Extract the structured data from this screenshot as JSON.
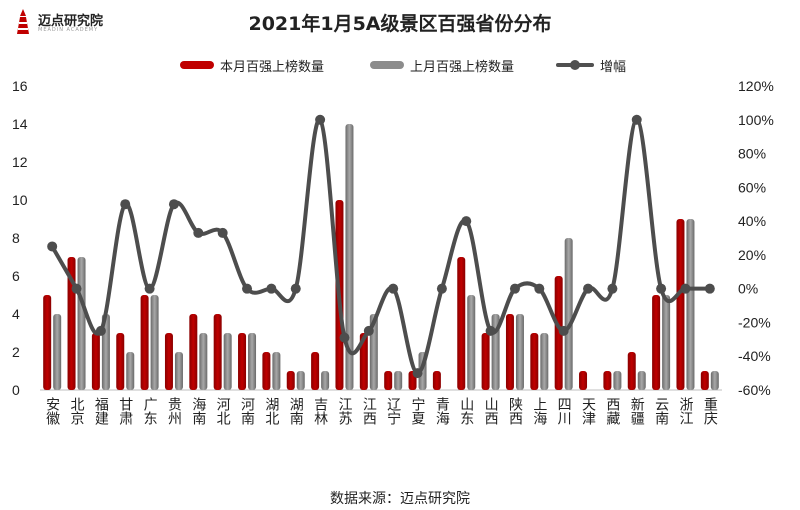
{
  "logo": {
    "text": "迈点研究院",
    "sub": "MEADIN ACADEMY"
  },
  "source": "数据来源：迈点研究院",
  "colors": {
    "current": "#c00000",
    "previous": "#8c8c8c",
    "growth": "#4d4d4d"
  },
  "chart_data": {
    "type": "bar",
    "title": "2021年1月5A级景区百强省份分布",
    "categories": [
      "安徽",
      "北京",
      "福建",
      "甘肃",
      "广东",
      "贵州",
      "海南",
      "河北",
      "河南",
      "湖北",
      "湖南",
      "吉林",
      "江苏",
      "江西",
      "辽宁",
      "宁夏",
      "青海",
      "山东",
      "山西",
      "陕西",
      "上海",
      "四川",
      "天津",
      "西藏",
      "新疆",
      "云南",
      "浙江",
      "重庆"
    ],
    "series": [
      {
        "name": "本月百强上榜数量",
        "type": "bar",
        "axis": "left",
        "values": [
          5,
          7,
          3,
          3,
          5,
          3,
          4,
          4,
          3,
          2,
          1,
          2,
          10,
          3,
          1,
          1,
          1,
          7,
          3,
          4,
          3,
          6,
          1,
          1,
          2,
          5,
          9,
          1
        ]
      },
      {
        "name": "上月百强上榜数量",
        "type": "bar",
        "axis": "left",
        "values": [
          4,
          7,
          4,
          2,
          5,
          2,
          3,
          3,
          3,
          2,
          1,
          1,
          14,
          4,
          1,
          2,
          0,
          5,
          4,
          4,
          3,
          8,
          0,
          1,
          1,
          5,
          9,
          1
        ]
      },
      {
        "name": "增幅",
        "type": "line",
        "axis": "right",
        "unit": "%",
        "values": [
          25,
          0,
          -25,
          50,
          0,
          50,
          33,
          33,
          0,
          0,
          0,
          100,
          -29,
          -25,
          0,
          -50,
          0,
          40,
          -25,
          0,
          0,
          -25,
          0,
          0,
          100,
          0,
          0,
          0
        ]
      }
    ],
    "y_left": {
      "min": 0,
      "max": 16,
      "ticks": [
        "0",
        "2",
        "4",
        "6",
        "8",
        "10",
        "12",
        "14",
        "16"
      ]
    },
    "y_right": {
      "min": -60,
      "max": 120,
      "ticks": [
        "-60%",
        "-40%",
        "-20%",
        "0%",
        "20%",
        "40%",
        "60%",
        "80%",
        "100%",
        "120%"
      ]
    },
    "grid": false,
    "legend_position": "top"
  }
}
